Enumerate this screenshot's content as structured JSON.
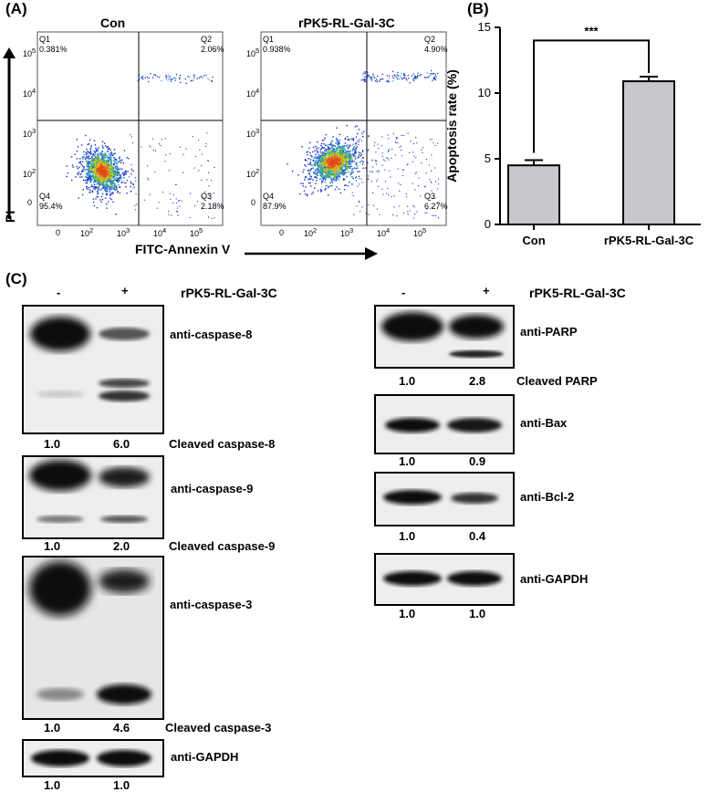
{
  "panel_a": {
    "label": "(A)",
    "xlabel": "FITC-Annexin V",
    "ylabel": "PI",
    "y_ticks": [
      "10^5",
      "10^4",
      "10^3",
      "10^2",
      "0"
    ],
    "x_ticks": [
      "0",
      "10^2",
      "10^3",
      "10^4",
      "10^5"
    ],
    "plots": [
      {
        "title": "Con",
        "q1": "Q1",
        "q1_val": "0.381%",
        "q2": "Q2",
        "q2_val": "2.06%",
        "q3": "Q3",
        "q3_val": "2.18%",
        "q4": "Q4",
        "q4_val": "95.4%"
      },
      {
        "title": "rPK5-RL-Gal-3C",
        "q1": "Q1",
        "q1_val": "0.938%",
        "q2": "Q2",
        "q2_val": "4.90%",
        "q3": "Q3",
        "q3_val": "6.27%",
        "q4": "Q4",
        "q4_val": "87.9%"
      }
    ]
  },
  "panel_b": {
    "label": "(B)",
    "significance": "***",
    "chart_data": {
      "type": "bar",
      "categories": [
        "Con",
        "rPK5-RL-Gal-3C"
      ],
      "values": [
        4.5,
        10.9
      ],
      "errors": [
        0.4,
        0.35
      ],
      "title": "",
      "xlabel": "",
      "ylabel": "Apoptosis rate (%)",
      "ylim": [
        0,
        15
      ],
      "yticks": [
        0,
        5,
        10,
        15
      ]
    }
  },
  "panel_c": {
    "label": "(C)",
    "left": {
      "minus": "-",
      "plus": "+",
      "treatment": "rPK5-RL-Gal-3C",
      "blots": [
        {
          "antibody": "anti-caspase-8",
          "v1": "1.0",
          "v2": "6.0",
          "caption": "Cleaved caspase-8"
        },
        {
          "antibody": "anti-caspase-9",
          "v1": "1.0",
          "v2": "2.0",
          "caption": "Cleaved caspase-9"
        },
        {
          "antibody": "anti-caspase-3",
          "v1": "1.0",
          "v2": "4.6",
          "caption": "Cleaved caspase-3"
        },
        {
          "antibody": "anti-GAPDH",
          "v1": "1.0",
          "v2": "1.0",
          "caption": ""
        }
      ]
    },
    "right": {
      "minus": "-",
      "plus": "+",
      "treatment": "rPK5-RL-Gal-3C",
      "blots": [
        {
          "antibody": "anti-PARP",
          "v1": "1.0",
          "v2": "2.8",
          "caption": "Cleaved PARP"
        },
        {
          "antibody": "anti-Bax",
          "v1": "1.0",
          "v2": "0.9",
          "caption": ""
        },
        {
          "antibody": "anti-Bcl-2",
          "v1": "1.0",
          "v2": "0.4",
          "caption": ""
        },
        {
          "antibody": "anti-GAPDH",
          "v1": "1.0",
          "v2": "1.0",
          "caption": ""
        }
      ]
    }
  }
}
